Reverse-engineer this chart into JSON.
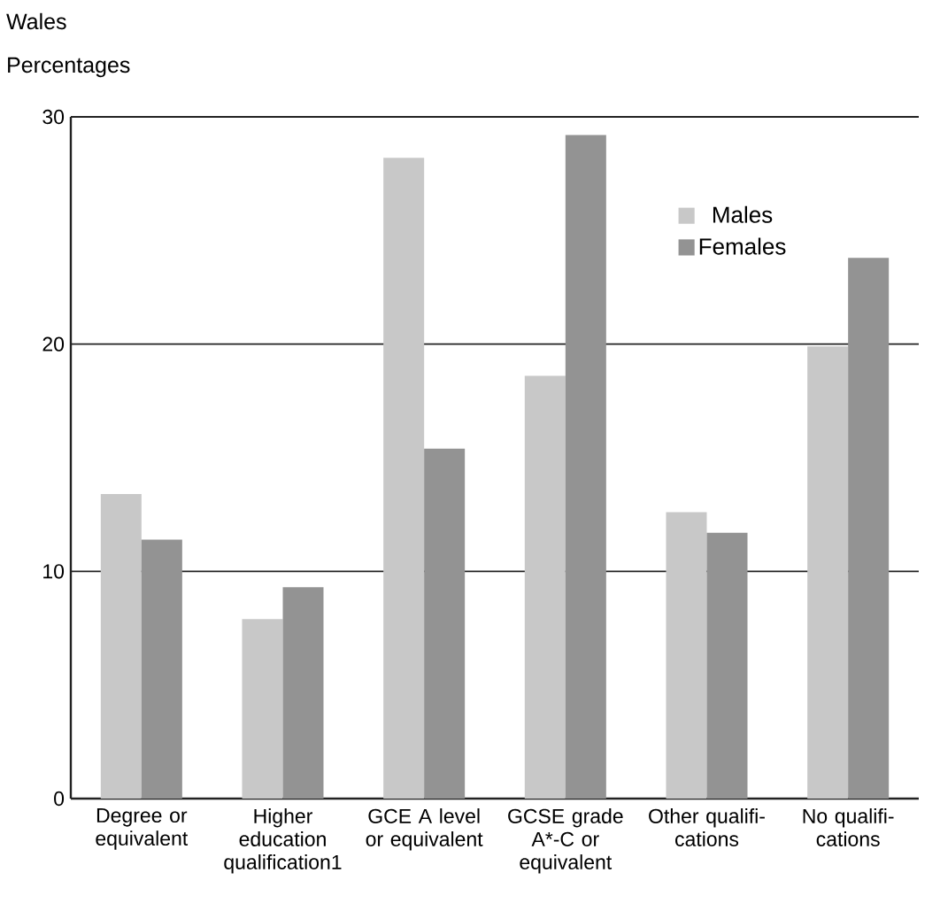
{
  "chart_data": {
    "type": "bar",
    "title": "Wales",
    "ylabel": "Percentages",
    "categories": [
      "Degree or equivalent",
      "Higher education qualification1",
      "GCE A level or equivalent",
      "GCSE grade A*-C or equivalent",
      "Other qualifi-cations",
      "No qualifi-cations"
    ],
    "series": [
      {
        "name": "Males",
        "color": "#c8c8c8",
        "values": [
          13.4,
          7.9,
          28.2,
          18.6,
          12.6,
          19.9
        ]
      },
      {
        "name": "Females",
        "color": "#939393",
        "values": [
          11.4,
          9.3,
          15.4,
          29.2,
          11.7,
          23.8
        ]
      }
    ],
    "ylim": [
      0,
      30
    ],
    "yticks": [
      0,
      10,
      20,
      30
    ],
    "grid": "y",
    "legend": "top right"
  }
}
